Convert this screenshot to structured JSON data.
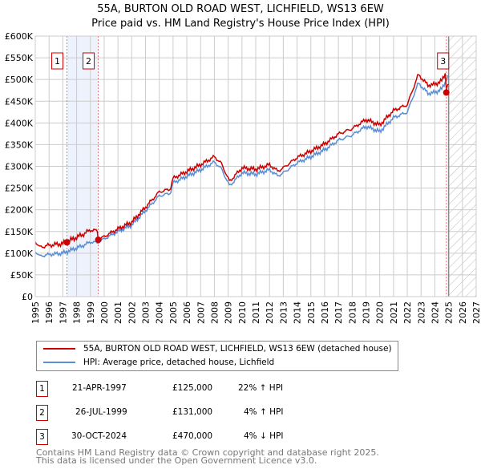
{
  "chart_data": {
    "type": "line",
    "title": "55A, BURTON OLD ROAD WEST, LICHFIELD, WS13 6EW",
    "subtitle": "Price paid vs. HM Land Registry's House Price Index (HPI)",
    "xlim": [
      1995,
      2027
    ],
    "ylim": [
      0,
      600000
    ],
    "x_ticks": [
      "1995",
      "1996",
      "1997",
      "1998",
      "1999",
      "2000",
      "2001",
      "2002",
      "2003",
      "2004",
      "2005",
      "2006",
      "2007",
      "2008",
      "2009",
      "2010",
      "2011",
      "2012",
      "2013",
      "2014",
      "2015",
      "2016",
      "2017",
      "2018",
      "2019",
      "2020",
      "2021",
      "2022",
      "2023",
      "2024",
      "2025",
      "2026",
      "2027"
    ],
    "y_ticks": [
      "£0",
      "£50K",
      "£100K",
      "£150K",
      "£200K",
      "£250K",
      "£300K",
      "£350K",
      "£400K",
      "£450K",
      "£500K",
      "£550K",
      "£600K"
    ],
    "hpi": {
      "x": [
        1995,
        1995.3,
        1996,
        1997,
        1997.5,
        1998,
        1998.5,
        1999,
        1999.5,
        2000,
        2001,
        2002,
        2003,
        2004,
        2004.8,
        2005,
        2006,
        2007,
        2008,
        2008.5,
        2009.1,
        2010,
        2011,
        2012,
        2012.6,
        2013,
        2014,
        2015,
        2016,
        2017,
        2018,
        2019,
        2020,
        2021,
        2022,
        2022.8,
        2023.5,
        2024,
        2024.5,
        2025
      ],
      "y": [
        105000,
        93000,
        97000,
        100000,
        106000,
        112000,
        118000,
        126000,
        124000,
        133000,
        150000,
        165000,
        198000,
        232000,
        238000,
        262000,
        277000,
        292000,
        310000,
        295000,
        255000,
        285000,
        282000,
        292000,
        278000,
        285000,
        308000,
        322000,
        338000,
        360000,
        372000,
        392000,
        380000,
        412000,
        425000,
        492000,
        468000,
        470000,
        478000,
        510000
      ]
    },
    "sales": [
      {
        "x": 1997.3,
        "y": 125000
      },
      {
        "x": 1999.57,
        "y": 131000
      },
      {
        "x": 2024.83,
        "y": 470000
      }
    ],
    "ratios": [
      1.22,
      1.04,
      0.96
    ],
    "forecast_start": 2025.0,
    "series": [
      {
        "name": "55A, BURTON OLD ROAD WEST, LICHFIELD, WS13 6EW (detached house)",
        "color": "#cc0000"
      },
      {
        "name": "HPI: Average price, detached house, Lichfield",
        "color": "#5b8fd4"
      }
    ]
  },
  "transactions": [
    {
      "n": "1",
      "date": "21-APR-1997",
      "price": "£125,000",
      "hpi": "22% ↑ HPI"
    },
    {
      "n": "2",
      "date": "26-JUL-1999",
      "price": "£131,000",
      "hpi": "4% ↑ HPI"
    },
    {
      "n": "3",
      "date": "30-OCT-2024",
      "price": "£470,000",
      "hpi": "4% ↓ HPI"
    }
  ],
  "footer": {
    "line1": "Contains HM Land Registry data © Crown copyright and database right 2025.",
    "line2": "This data is licensed under the Open Government Licence v3.0."
  }
}
